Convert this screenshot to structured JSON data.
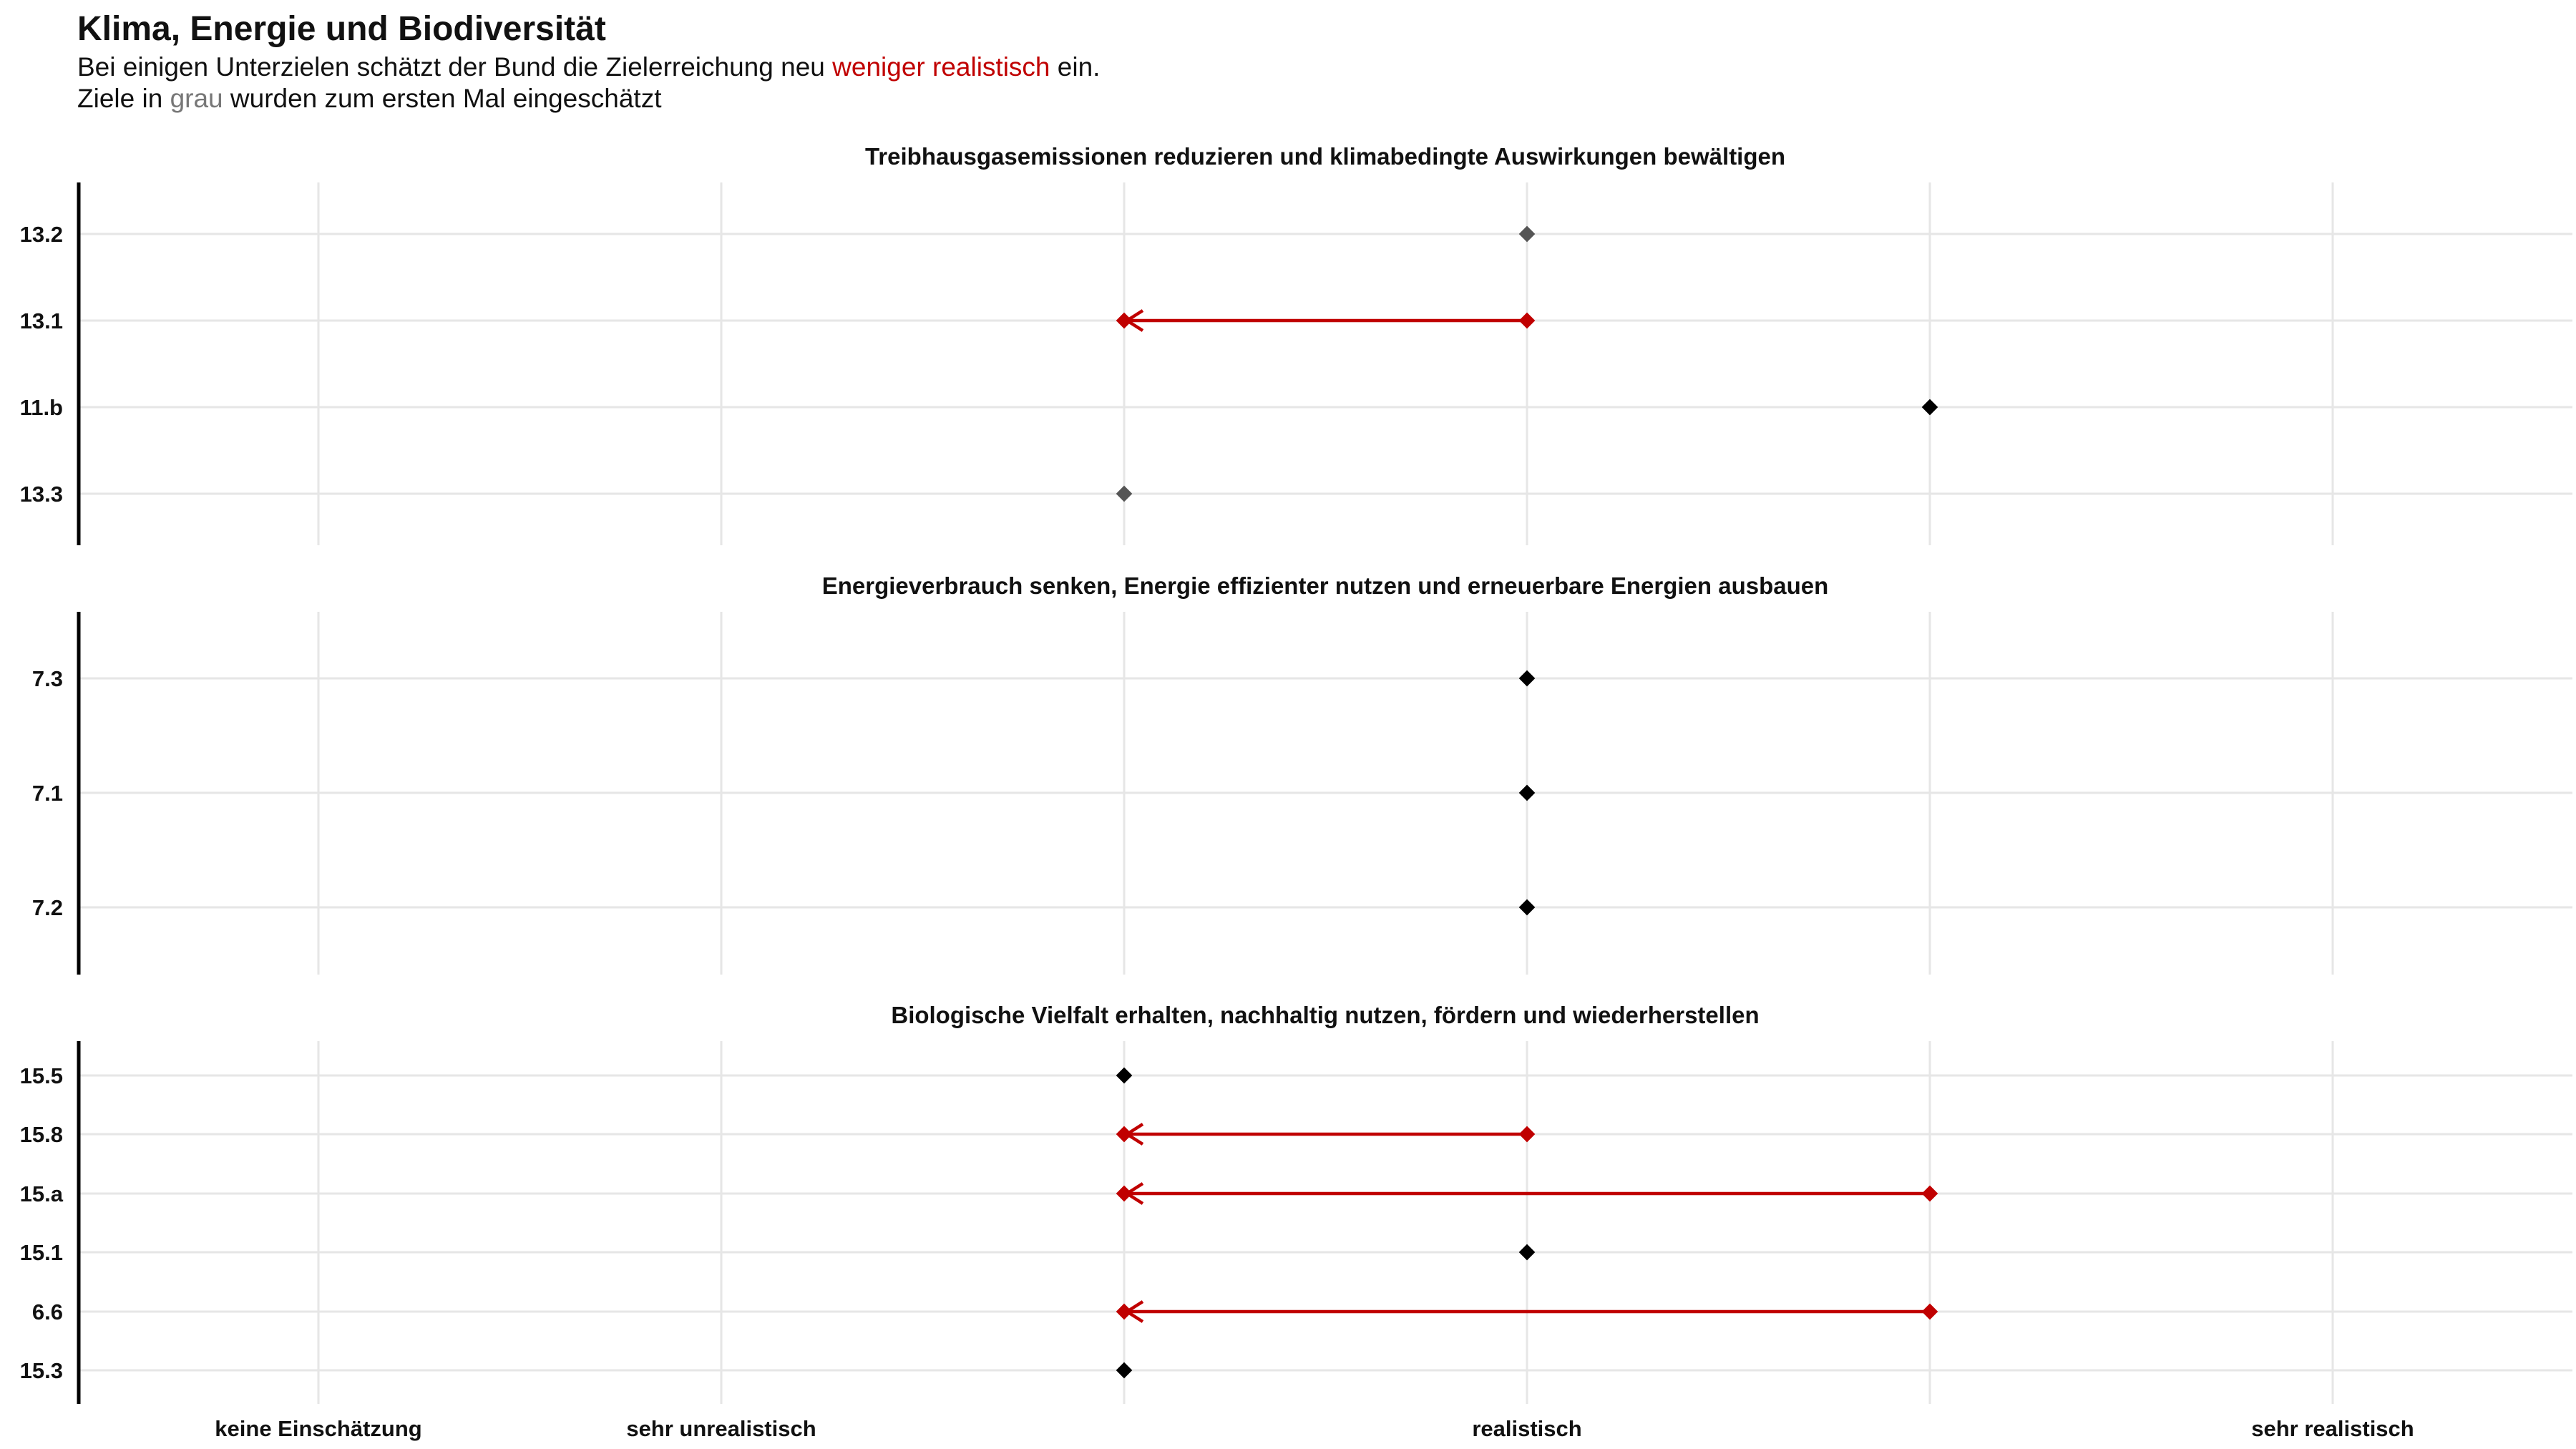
{
  "header": {
    "title": "Klima, Energie und Biodiversität",
    "line1_pre": "Bei einigen Unterzielen schätzt der Bund die Zielerreichung neu ",
    "line1_hl": "weniger realistisch",
    "line1_post": " ein.",
    "line2_pre": "Ziele in ",
    "line2_hl": "grau",
    "line2_post": " wurden zum ersten Mal eingeschätzt"
  },
  "colors": {
    "changed": "#c00000",
    "new": "#555555",
    "unchanged": "#000000",
    "grid": "#e6e6e6",
    "axis": "#000000"
  },
  "chart_data": {
    "type": "dot-arrow",
    "x_categories": [
      "keine Einschätzung",
      "sehr unrealistisch",
      "",
      "realistisch",
      "",
      "sehr realistisch"
    ],
    "panels": [
      {
        "title": "Treibhausgasemissionen reduzieren und klimabedingte Auswirkungen bewältigen",
        "rows": [
          {
            "label": "13.2",
            "from": null,
            "to": 3,
            "status": "new"
          },
          {
            "label": "13.1",
            "from": 3,
            "to": 2,
            "status": "changed"
          },
          {
            "label": "11.b",
            "from": null,
            "to": 4,
            "status": "unchanged"
          },
          {
            "label": "13.3",
            "from": null,
            "to": 2,
            "status": "new"
          }
        ]
      },
      {
        "title": "Energieverbrauch senken, Energie effizienter nutzen und erneuerbare Energien ausbauen",
        "rows": [
          {
            "label": "7.3",
            "from": null,
            "to": 3,
            "status": "unchanged"
          },
          {
            "label": "7.1",
            "from": null,
            "to": 3,
            "status": "unchanged"
          },
          {
            "label": "7.2",
            "from": null,
            "to": 3,
            "status": "unchanged"
          }
        ]
      },
      {
        "title": "Biologische Vielfalt erhalten, nachhaltig nutzen, fördern und wiederherstellen",
        "rows": [
          {
            "label": "15.5",
            "from": null,
            "to": 2,
            "status": "unchanged"
          },
          {
            "label": "15.8",
            "from": 3,
            "to": 2,
            "status": "changed"
          },
          {
            "label": "15.a",
            "from": 4,
            "to": 2,
            "status": "changed"
          },
          {
            "label": "15.1",
            "from": null,
            "to": 3,
            "status": "unchanged"
          },
          {
            "label": "6.6",
            "from": 4,
            "to": 2,
            "status": "changed"
          },
          {
            "label": "15.3",
            "from": null,
            "to": 2,
            "status": "unchanged"
          }
        ]
      }
    ]
  }
}
